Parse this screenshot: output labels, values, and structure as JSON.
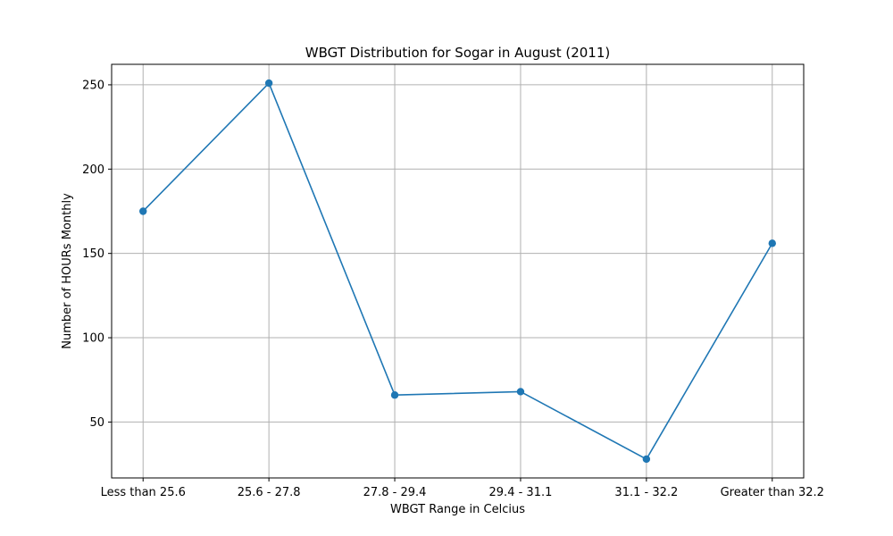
{
  "chart_data": {
    "type": "line",
    "title": "WBGT Distribution for Sogar in August (2011)",
    "xlabel": "WBGT Range in Celcius",
    "ylabel": "Number of HOURs Monthly",
    "categories": [
      "Less than 25.6",
      "25.6 - 27.8",
      "27.8 - 29.4",
      "29.4 - 31.1",
      "31.1 - 32.2",
      "Greater than 32.2"
    ],
    "series": [
      {
        "values": [
          175,
          251,
          66,
          68,
          28,
          156
        ]
      }
    ],
    "ylim": [
      16.85,
      262.15
    ],
    "yticks": [
      50,
      100,
      150,
      200,
      250
    ],
    "grid": true,
    "marker": "circle",
    "colors": {
      "series": "#1f77b4"
    }
  }
}
